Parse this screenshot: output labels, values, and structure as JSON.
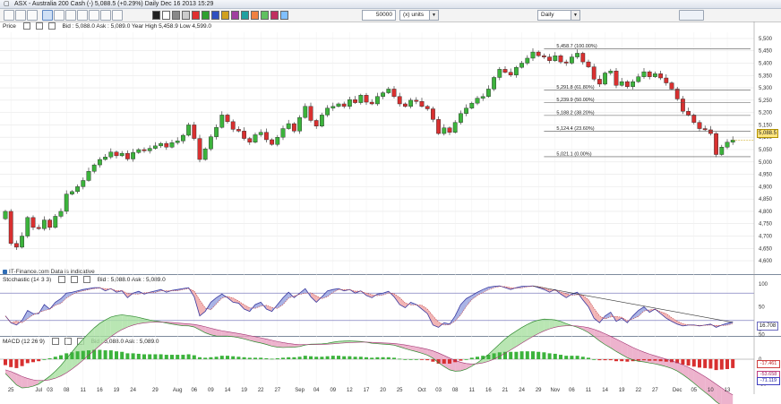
{
  "window": {
    "title": "ASX - Australia 200 Cash (-)   5,088.5 (+0.29%)     Daily   Dec 16 2013 15:29",
    "symbol_icon": "chart-icon"
  },
  "toolbar": {
    "units_value": "50000",
    "units_label": "(x) units",
    "timeframe": "Daily",
    "tools": [
      "cursor-icon",
      "crosshair-icon",
      "magnifier-icon",
      "zoom-icon",
      "line-tool-icon",
      "text-tool-icon",
      "fib-tool-icon",
      "pen-icon",
      "copy-icon",
      "save-icon"
    ],
    "colors": [
      "#202020",
      "#ffffff",
      "#888888",
      "#cccccc",
      "#e03030",
      "#30a030",
      "#3050c0",
      "#d0a020",
      "#a040a0",
      "#20a0a0",
      "#f08040",
      "#60c060",
      "#c03060",
      "#80c0ff"
    ]
  },
  "price_panel": {
    "header_label": "Price",
    "header_values": "Bid : 5,088.0  Ask : 5,089.0  Year High 5,458.9  Low 4,599.0",
    "disclaimer": "IT-Finance.com  Data is indicative",
    "current_price": "5,088.5"
  },
  "stoch_panel": {
    "header_label": "Stochastic (14 3 3)",
    "header_values": "Bid : 5,088.0  Ask : 5,089.0",
    "current_value": "16.708"
  },
  "macd_panel": {
    "header_label": "MACD (12 26 9)",
    "header_values": "Bid : 5,088.0  Ask : 5,089.0",
    "value_1": "-17.461",
    "value_2": "-53.658",
    "value_3": "-71.119"
  },
  "chart_data": {
    "type": "candlestick",
    "instrument": "ASX - Australia 200 Cash (-)",
    "interval": "Daily",
    "ylim": [
      4575,
      5525
    ],
    "yticks": [
      4600,
      4650,
      4700,
      4750,
      4800,
      4850,
      4900,
      4950,
      5000,
      5050,
      5100,
      5150,
      5200,
      5250,
      5300,
      5350,
      5400,
      5450,
      5500
    ],
    "ytick_labels": [
      "4,600",
      "4,650",
      "4,700",
      "4,750",
      "4,800",
      "4,850",
      "4,900",
      "4,950",
      "5,000",
      "5,050",
      "5,100",
      "5,150",
      "5,200",
      "5,250",
      "5,300",
      "5,350",
      "5,400",
      "5,450",
      "5,500"
    ],
    "fibonacci": [
      {
        "label": "5,458.7 (100.00%)",
        "value": 5458.7
      },
      {
        "label": "5,291.8 (61.80%)",
        "value": 5291.8
      },
      {
        "label": "5,239.9 (50.00%)",
        "value": 5239.9
      },
      {
        "label": "5,188.2 (38.20%)",
        "value": 5188.2
      },
      {
        "label": "5,124.4 (23.60%)",
        "value": 5124.4
      },
      {
        "label": "5,021.1 (0.00%)",
        "value": 5021.1
      }
    ],
    "x_tick_labels": [
      {
        "i": 1,
        "label": "25"
      },
      {
        "i": 6,
        "label": "Jul"
      },
      {
        "i": 8,
        "label": "03"
      },
      {
        "i": 11,
        "label": "08"
      },
      {
        "i": 14,
        "label": "11"
      },
      {
        "i": 17,
        "label": "16"
      },
      {
        "i": 20,
        "label": "19"
      },
      {
        "i": 23,
        "label": "24"
      },
      {
        "i": 27,
        "label": "29"
      },
      {
        "i": 31,
        "label": "Aug"
      },
      {
        "i": 34,
        "label": "06"
      },
      {
        "i": 37,
        "label": "09"
      },
      {
        "i": 40,
        "label": "14"
      },
      {
        "i": 43,
        "label": "19"
      },
      {
        "i": 46,
        "label": "22"
      },
      {
        "i": 49,
        "label": "27"
      },
      {
        "i": 53,
        "label": "Sep"
      },
      {
        "i": 56,
        "label": "04"
      },
      {
        "i": 59,
        "label": "09"
      },
      {
        "i": 62,
        "label": "12"
      },
      {
        "i": 65,
        "label": "17"
      },
      {
        "i": 68,
        "label": "20"
      },
      {
        "i": 71,
        "label": "25"
      },
      {
        "i": 75,
        "label": "Oct"
      },
      {
        "i": 78,
        "label": "03"
      },
      {
        "i": 81,
        "label": "08"
      },
      {
        "i": 84,
        "label": "11"
      },
      {
        "i": 87,
        "label": "16"
      },
      {
        "i": 90,
        "label": "21"
      },
      {
        "i": 93,
        "label": "24"
      },
      {
        "i": 96,
        "label": "29"
      },
      {
        "i": 99,
        "label": "Nov"
      },
      {
        "i": 102,
        "label": "06"
      },
      {
        "i": 105,
        "label": "11"
      },
      {
        "i": 108,
        "label": "14"
      },
      {
        "i": 111,
        "label": "19"
      },
      {
        "i": 114,
        "label": "22"
      },
      {
        "i": 117,
        "label": "27"
      },
      {
        "i": 121,
        "label": "Dec"
      },
      {
        "i": 124,
        "label": "05"
      },
      {
        "i": 127,
        "label": "10"
      },
      {
        "i": 130,
        "label": "13"
      }
    ],
    "close": [
      4800,
      4670,
      4655,
      4700,
      4775,
      4735,
      4730,
      4765,
      4735,
      4780,
      4800,
      4870,
      4880,
      4900,
      4925,
      4962,
      4988,
      5010,
      5020,
      5040,
      5025,
      5035,
      5012,
      5038,
      5050,
      5045,
      5055,
      5065,
      5075,
      5060,
      5078,
      5085,
      5108,
      5150,
      5095,
      5010,
      5053,
      5102,
      5140,
      5190,
      5163,
      5132,
      5125,
      5095,
      5080,
      5110,
      5120,
      5090,
      5071,
      5100,
      5135,
      5155,
      5125,
      5180,
      5225,
      5168,
      5145,
      5190,
      5218,
      5225,
      5235,
      5225,
      5252,
      5240,
      5270,
      5242,
      5235,
      5265,
      5280,
      5295,
      5265,
      5235,
      5225,
      5250,
      5245,
      5225,
      5215,
      5172,
      5115,
      5138,
      5120,
      5160,
      5196,
      5218,
      5238,
      5258,
      5265,
      5295,
      5342,
      5375,
      5363,
      5352,
      5383,
      5400,
      5420,
      5445,
      5430,
      5425,
      5410,
      5430,
      5405,
      5400,
      5425,
      5440,
      5405,
      5385,
      5335,
      5315,
      5360,
      5368,
      5310,
      5325,
      5305,
      5325,
      5345,
      5365,
      5345,
      5357,
      5340,
      5320,
      5295,
      5255,
      5205,
      5190,
      5160,
      5135,
      5130,
      5115,
      5030,
      5060,
      5080,
      5088.5
    ],
    "sto_k": [
      30,
      15,
      10,
      20,
      42,
      35,
      35,
      55,
      45,
      60,
      68,
      80,
      82,
      85,
      88,
      90,
      92,
      92,
      85,
      90,
      82,
      85,
      70,
      80,
      84,
      78,
      82,
      85,
      88,
      82,
      86,
      88,
      90,
      92,
      72,
      30,
      40,
      60,
      70,
      78,
      70,
      60,
      58,
      45,
      40,
      55,
      60,
      45,
      40,
      55,
      70,
      82,
      70,
      80,
      90,
      72,
      60,
      72,
      85,
      88,
      90,
      85,
      88,
      80,
      85,
      75,
      70,
      78,
      80,
      84,
      72,
      55,
      48,
      60,
      55,
      45,
      35,
      10,
      5,
      15,
      12,
      30,
      55,
      68,
      75,
      82,
      88,
      93,
      95,
      96,
      92,
      88,
      92,
      95,
      95,
      96,
      92,
      88,
      82,
      88,
      78,
      70,
      78,
      82,
      65,
      50,
      25,
      15,
      30,
      38,
      18,
      25,
      15,
      30,
      42,
      50,
      38,
      45,
      35,
      25,
      18,
      12,
      8,
      10,
      10,
      8,
      10,
      12,
      5,
      10,
      14,
      16.7
    ],
    "macd_hist": [
      -12,
      -16,
      -18,
      -14,
      -8,
      -6,
      -4,
      0,
      2,
      5,
      8,
      12,
      14,
      16,
      17,
      18,
      19,
      19,
      18,
      18,
      16,
      15,
      12,
      12,
      11,
      10,
      10,
      10,
      10,
      9,
      9,
      9,
      9,
      10,
      8,
      4,
      3,
      4,
      5,
      7,
      7,
      6,
      5,
      4,
      3,
      3,
      3,
      2,
      1,
      2,
      3,
      4,
      4,
      5,
      7,
      6,
      5,
      5,
      6,
      7,
      7,
      6,
      6,
      5,
      5,
      4,
      3,
      4,
      4,
      4,
      3,
      1,
      0,
      0,
      0,
      -1,
      -2,
      -5,
      -9,
      -9,
      -9,
      -6,
      -3,
      0,
      3,
      5,
      7,
      9,
      12,
      14,
      15,
      15,
      15,
      16,
      16,
      16,
      15,
      14,
      12,
      11,
      9,
      7,
      7,
      7,
      5,
      3,
      0,
      -2,
      -2,
      -2,
      -4,
      -4,
      -5,
      -4,
      -3,
      -2,
      -3,
      -3,
      -4,
      -5,
      -6,
      -8,
      -11,
      -13,
      -15,
      -17,
      -18,
      -19,
      -22,
      -21,
      -20,
      -18
    ]
  }
}
